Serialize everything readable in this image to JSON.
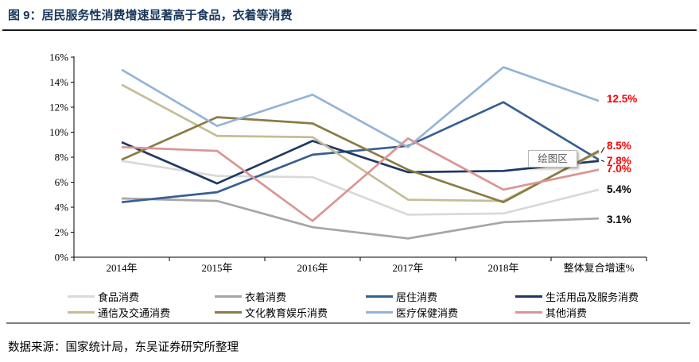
{
  "title": {
    "text": "图 9：居民服务性消费增速显著高于食品，衣着等消费"
  },
  "tooltip": {
    "text": "绘图区"
  },
  "footer": {
    "text": "数据来源：国家统计局，东吴证券研究所整理"
  },
  "chart_data": {
    "type": "line",
    "title": "居民服务性消费增速显著高于食品，衣着等消费",
    "categories": [
      "2014年",
      "2015年",
      "2016年",
      "2017年",
      "2018年",
      "整体复合增速%"
    ],
    "ylim": [
      0,
      16
    ],
    "ytick_step": 2,
    "ytick_labels": [
      "0%",
      "2%",
      "4%",
      "6%",
      "8%",
      "10%",
      "12%",
      "14%",
      "16%"
    ],
    "grid": false,
    "legend_position": "bottom",
    "series": [
      {
        "name": "食品消费",
        "color": "#d9d9d9",
        "values": [
          7.7,
          6.5,
          6.4,
          3.4,
          3.5,
          5.4
        ]
      },
      {
        "name": "衣着消费",
        "color": "#a6a6a6",
        "values": [
          4.7,
          4.5,
          2.4,
          1.5,
          2.8,
          3.1
        ]
      },
      {
        "name": "居住消费",
        "color": "#365f91",
        "values": [
          4.4,
          5.2,
          8.2,
          8.9,
          12.4,
          7.8
        ]
      },
      {
        "name": "生活用品及服务消费",
        "color": "#1f3864",
        "values": [
          9.2,
          5.9,
          9.3,
          6.8,
          6.9,
          7.7
        ]
      },
      {
        "name": "通信及交通消费",
        "color": "#c4bd97",
        "values": [
          13.8,
          9.7,
          9.6,
          4.6,
          4.5,
          8.4
        ]
      },
      {
        "name": "文化教育娱乐消费",
        "color": "#8a7c45",
        "values": [
          7.8,
          11.2,
          10.7,
          7.0,
          4.4,
          8.5
        ]
      },
      {
        "name": "医疗保健消费",
        "color": "#95b3d7",
        "values": [
          15.0,
          10.5,
          13.0,
          8.8,
          15.2,
          12.5
        ]
      },
      {
        "name": "其他消费",
        "color": "#d99694",
        "values": [
          8.8,
          8.5,
          2.9,
          9.5,
          5.4,
          7.0
        ]
      }
    ],
    "end_labels": [
      {
        "text": "12.5%",
        "y_value": 12.55,
        "color": "#ff0000",
        "leader_from_value": null
      },
      {
        "text": "8.5%",
        "y_value": 8.8,
        "color": "#ff0000",
        "leader_from_value": 8.35
      },
      {
        "text": "7.8%",
        "y_value": 7.65,
        "color": "#ff0000",
        "leader_from_value": 7.75
      },
      {
        "text": "7.0%",
        "y_value": 7.0,
        "color": "#ff0000",
        "leader_from_value": null
      },
      {
        "text": "5.4%",
        "y_value": 5.35,
        "color": "#000000",
        "leader_from_value": null
      },
      {
        "text": "3.1%",
        "y_value": 2.95,
        "color": "#000000",
        "leader_from_value": null
      }
    ]
  }
}
